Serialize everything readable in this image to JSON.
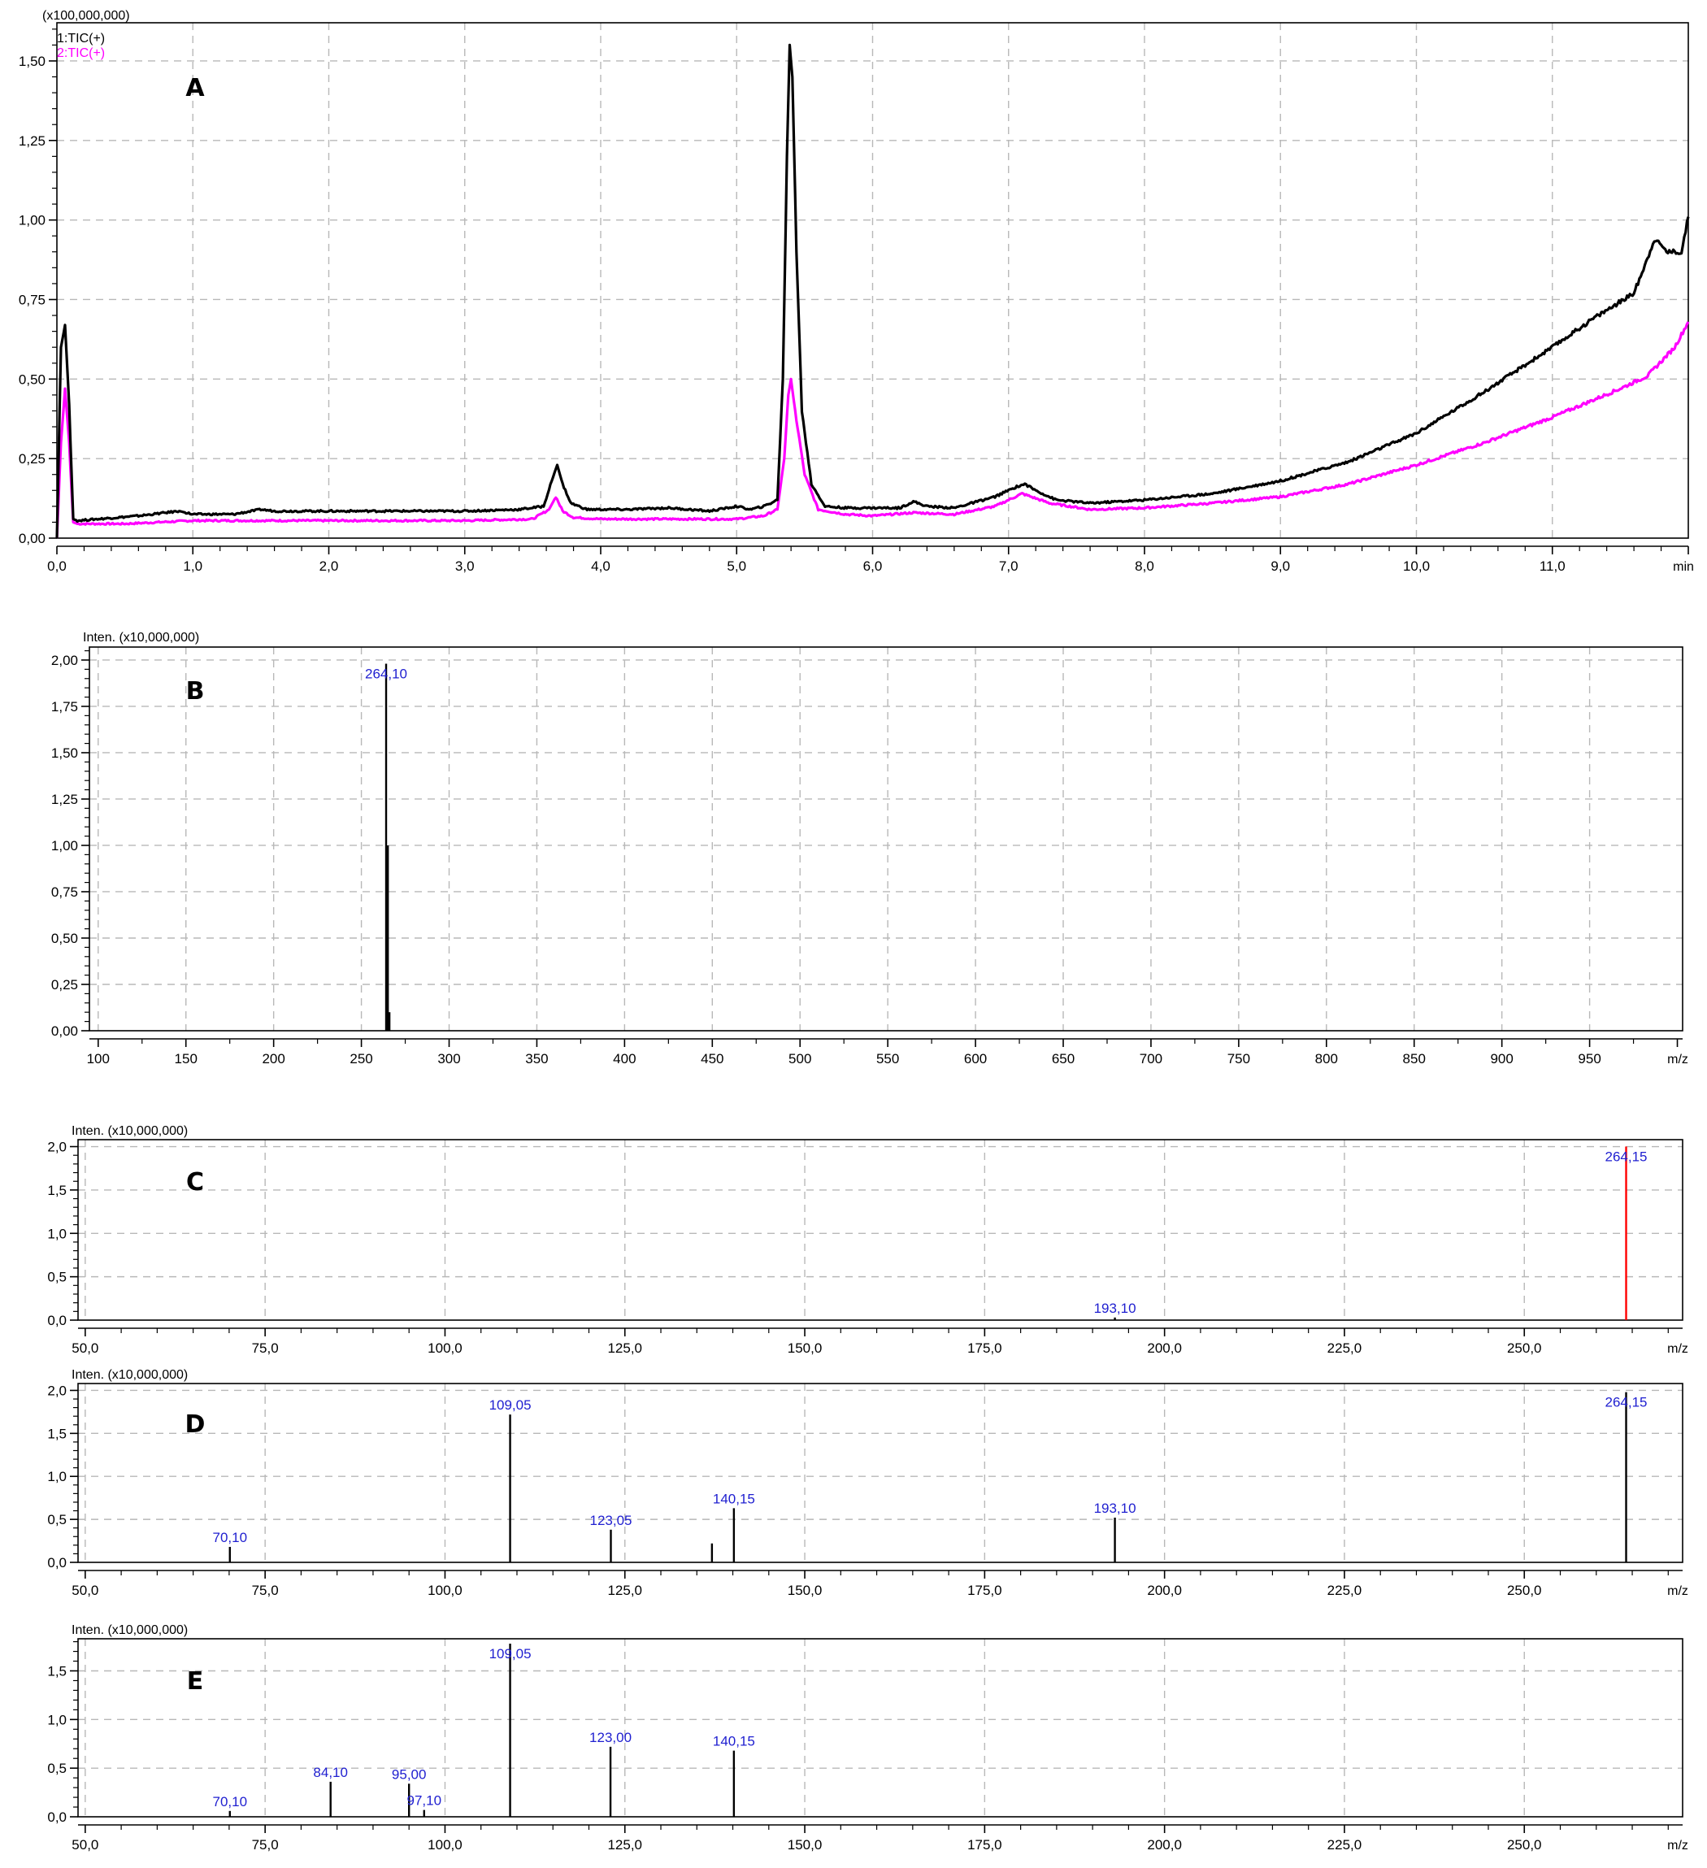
{
  "colors": {
    "trace1": "#000000",
    "trace2": "#ff00ff",
    "stick": "#000000",
    "highlight": "#ff0000",
    "peak_label": "#1f1fd0"
  },
  "chart_data": [
    {
      "type": "line",
      "panel": "A",
      "y_unit_label": "(x100,000,000)",
      "x_unit_label": "min",
      "xlim": [
        0,
        12.0
      ],
      "ylim": [
        0,
        1.62
      ],
      "x_ticks": [
        0,
        1,
        2,
        3,
        4,
        5,
        6,
        7,
        8,
        9,
        10,
        11
      ],
      "x_tick_labels": [
        "0,0",
        "1,0",
        "2,0",
        "3,0",
        "4,0",
        "5,0",
        "6,0",
        "7,0",
        "8,0",
        "9,0",
        "10,0",
        "11,0"
      ],
      "y_ticks": [
        0,
        0.25,
        0.5,
        0.75,
        1.0,
        1.25,
        1.5
      ],
      "y_tick_labels": [
        "0,00",
        "0,25",
        "0,50",
        "0,75",
        "1,00",
        "1,25",
        "1,50"
      ],
      "grid": true,
      "series": [
        {
          "name": "1:TIC(+)",
          "color": "#000000",
          "x": [
            0.0,
            0.03,
            0.06,
            0.09,
            0.12,
            0.15,
            0.3,
            0.6,
            0.9,
            0.95,
            1.0,
            1.3,
            1.5,
            1.6,
            2.0,
            2.5,
            3.0,
            3.4,
            3.58,
            3.64,
            3.68,
            3.72,
            3.78,
            3.9,
            4.2,
            4.5,
            4.8,
            5.0,
            5.1,
            5.2,
            5.3,
            5.34,
            5.37,
            5.39,
            5.41,
            5.44,
            5.48,
            5.55,
            5.65,
            5.8,
            6.0,
            6.2,
            6.3,
            6.4,
            6.6,
            6.9,
            7.05,
            7.12,
            7.2,
            7.35,
            7.6,
            8.0,
            8.5,
            9.0,
            9.5,
            10.0,
            10.5,
            11.0,
            11.3,
            11.6,
            11.7,
            11.75,
            11.85,
            11.95,
            12.0
          ],
          "y": [
            0.0,
            0.6,
            0.67,
            0.42,
            0.06,
            0.055,
            0.06,
            0.07,
            0.085,
            0.08,
            0.075,
            0.075,
            0.09,
            0.085,
            0.085,
            0.085,
            0.085,
            0.09,
            0.1,
            0.18,
            0.23,
            0.17,
            0.11,
            0.09,
            0.09,
            0.095,
            0.085,
            0.1,
            0.09,
            0.1,
            0.12,
            0.5,
            1.2,
            1.55,
            1.45,
            0.9,
            0.4,
            0.17,
            0.1,
            0.095,
            0.095,
            0.095,
            0.115,
            0.1,
            0.095,
            0.13,
            0.16,
            0.17,
            0.15,
            0.12,
            0.11,
            0.12,
            0.14,
            0.18,
            0.24,
            0.33,
            0.46,
            0.6,
            0.69,
            0.77,
            0.88,
            0.94,
            0.9,
            0.9,
            1.01
          ]
        },
        {
          "name": "2:TIC(+)",
          "color": "#ff00ff",
          "x": [
            0.0,
            0.03,
            0.06,
            0.09,
            0.12,
            0.15,
            0.5,
            1.0,
            1.5,
            2.0,
            3.0,
            3.5,
            3.62,
            3.67,
            3.72,
            3.8,
            4.0,
            5.0,
            5.2,
            5.3,
            5.35,
            5.38,
            5.4,
            5.43,
            5.5,
            5.6,
            5.8,
            6.0,
            6.3,
            6.6,
            6.9,
            7.1,
            7.3,
            7.6,
            8.0,
            8.5,
            9.0,
            9.5,
            10.0,
            10.5,
            11.0,
            11.5,
            11.7,
            11.9,
            12.0
          ],
          "y": [
            0.0,
            0.3,
            0.47,
            0.3,
            0.05,
            0.045,
            0.045,
            0.055,
            0.055,
            0.055,
            0.055,
            0.06,
            0.09,
            0.13,
            0.085,
            0.065,
            0.06,
            0.06,
            0.07,
            0.09,
            0.25,
            0.45,
            0.5,
            0.4,
            0.2,
            0.09,
            0.075,
            0.07,
            0.08,
            0.075,
            0.1,
            0.14,
            0.11,
            0.09,
            0.095,
            0.11,
            0.13,
            0.17,
            0.23,
            0.3,
            0.38,
            0.47,
            0.51,
            0.6,
            0.68
          ]
        }
      ]
    },
    {
      "type": "bar",
      "panel": "B",
      "y_unit_label": "Inten. (x10,000,000)",
      "x_unit_label": "m/z",
      "xlim": [
        95,
        1003
      ],
      "ylim": [
        0,
        2.07
      ],
      "x_ticks": [
        100,
        150,
        200,
        250,
        300,
        350,
        400,
        450,
        500,
        550,
        600,
        650,
        700,
        750,
        800,
        850,
        900,
        950
      ],
      "x_tick_labels": [
        "100",
        "150",
        "200",
        "250",
        "300",
        "350",
        "400",
        "450",
        "500",
        "550",
        "600",
        "650",
        "700",
        "750",
        "800",
        "850",
        "900",
        "950"
      ],
      "y_ticks": [
        0,
        0.25,
        0.5,
        0.75,
        1.0,
        1.25,
        1.5,
        1.75,
        2.0
      ],
      "y_tick_labels": [
        "0,00",
        "0,25",
        "0,50",
        "0,75",
        "1,00",
        "1,25",
        "1,50",
        "1,75",
        "2,00"
      ],
      "grid": true,
      "peaks": [
        {
          "mz": 264.1,
          "intensity": 1.98,
          "label": "264,10",
          "color": "#000000"
        },
        {
          "mz": 265.1,
          "intensity": 1.0,
          "label": "",
          "color": "#000000"
        },
        {
          "mz": 266.0,
          "intensity": 0.1,
          "label": "",
          "color": "#000000"
        }
      ]
    },
    {
      "type": "bar",
      "panel": "C",
      "y_unit_label": "Inten. (x10,000,000)",
      "x_unit_label": "m/z",
      "xlim": [
        49,
        272
      ],
      "ylim": [
        0,
        2.08
      ],
      "x_ticks": [
        50,
        75,
        100,
        125,
        150,
        175,
        200,
        225,
        250
      ],
      "x_tick_labels": [
        "50,0",
        "75,0",
        "100,0",
        "125,0",
        "150,0",
        "175,0",
        "200,0",
        "225,0",
        "250,0"
      ],
      "y_ticks": [
        0,
        0.5,
        1.0,
        1.5,
        2.0
      ],
      "y_tick_labels": [
        "0,0",
        "0,5",
        "1,0",
        "1,5",
        "2,0"
      ],
      "grid": true,
      "peaks": [
        {
          "mz": 193.1,
          "intensity": 0.03,
          "label": "193,10",
          "color": "#000000"
        },
        {
          "mz": 264.15,
          "intensity": 2.0,
          "label": "264,15",
          "color": "#ff0000"
        }
      ]
    },
    {
      "type": "bar",
      "panel": "D",
      "y_unit_label": "Inten. (x10,000,000)",
      "x_unit_label": "m/z",
      "xlim": [
        49,
        272
      ],
      "ylim": [
        0,
        2.08
      ],
      "x_ticks": [
        50,
        75,
        100,
        125,
        150,
        175,
        200,
        225,
        250
      ],
      "x_tick_labels": [
        "50,0",
        "75,0",
        "100,0",
        "125,0",
        "150,0",
        "175,0",
        "200,0",
        "225,0",
        "250,0"
      ],
      "y_ticks": [
        0,
        0.5,
        1.0,
        1.5,
        2.0
      ],
      "y_tick_labels": [
        "0,0",
        "0,5",
        "1,0",
        "1,5",
        "2,0"
      ],
      "grid": true,
      "peaks": [
        {
          "mz": 70.1,
          "intensity": 0.18,
          "label": "70,10",
          "color": "#000000"
        },
        {
          "mz": 109.05,
          "intensity": 1.72,
          "label": "109,05",
          "color": "#000000"
        },
        {
          "mz": 123.05,
          "intensity": 0.38,
          "label": "123,05",
          "color": "#000000"
        },
        {
          "mz": 137.1,
          "intensity": 0.22,
          "label": "",
          "color": "#000000"
        },
        {
          "mz": 140.15,
          "intensity": 0.63,
          "label": "140,15",
          "color": "#000000"
        },
        {
          "mz": 193.1,
          "intensity": 0.52,
          "label": "193,10",
          "color": "#000000"
        },
        {
          "mz": 264.15,
          "intensity": 1.98,
          "label": "264,15",
          "color": "#000000"
        }
      ]
    },
    {
      "type": "bar",
      "panel": "E",
      "y_unit_label": "Inten. (x10,000,000)",
      "x_unit_label": "m/z",
      "xlim": [
        49,
        272
      ],
      "ylim": [
        0,
        1.83
      ],
      "x_ticks": [
        50,
        75,
        100,
        125,
        150,
        175,
        200,
        225,
        250
      ],
      "x_tick_labels": [
        "50,0",
        "75,0",
        "100,0",
        "125,0",
        "150,0",
        "175,0",
        "200,0",
        "225,0",
        "250,0"
      ],
      "y_ticks": [
        0,
        0.5,
        1.0,
        1.5
      ],
      "y_tick_labels": [
        "0,0",
        "0,5",
        "1,0",
        "1,5"
      ],
      "grid": true,
      "peaks": [
        {
          "mz": 70.1,
          "intensity": 0.06,
          "label": "70,10",
          "color": "#000000"
        },
        {
          "mz": 84.1,
          "intensity": 0.36,
          "label": "84,10",
          "color": "#000000"
        },
        {
          "mz": 95.0,
          "intensity": 0.34,
          "label": "95,00",
          "color": "#000000"
        },
        {
          "mz": 97.1,
          "intensity": 0.07,
          "label": "97,10",
          "color": "#000000"
        },
        {
          "mz": 109.05,
          "intensity": 1.78,
          "label": "109,05",
          "color": "#000000"
        },
        {
          "mz": 123.0,
          "intensity": 0.72,
          "label": "123,00",
          "color": "#000000"
        },
        {
          "mz": 140.15,
          "intensity": 0.68,
          "label": "140,15",
          "color": "#000000"
        }
      ]
    }
  ]
}
